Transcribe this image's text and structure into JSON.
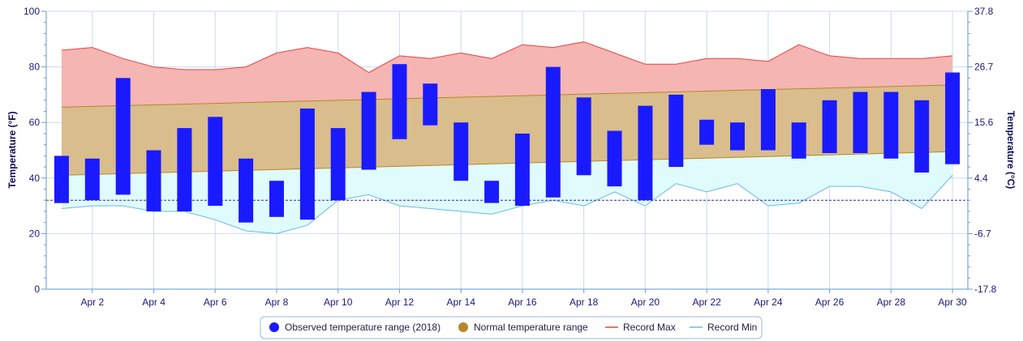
{
  "chart_data": {
    "type": "bar",
    "ylabel_left": "Temperature (°F)",
    "ylabel_right": "Temperature (°C)",
    "ylim": [
      0,
      100
    ],
    "yticks_left": [
      "0",
      "20",
      "40",
      "60",
      "80",
      "100"
    ],
    "yticks_right": [
      "-17.8",
      "-6.7",
      "4.4",
      "15.6",
      "26.7",
      "37.8"
    ],
    "x_days": [
      1,
      2,
      3,
      4,
      5,
      6,
      7,
      8,
      9,
      10,
      11,
      12,
      13,
      14,
      15,
      16,
      17,
      18,
      19,
      20,
      21,
      22,
      23,
      24,
      25,
      26,
      27,
      28,
      29,
      30
    ],
    "x_tick_labels": [
      "Apr 2",
      "Apr 4",
      "Apr 6",
      "Apr 8",
      "Apr 10",
      "Apr 12",
      "Apr 14",
      "Apr 16",
      "Apr 18",
      "Apr 20",
      "Apr 22",
      "Apr 24",
      "Apr 26",
      "Apr 28",
      "Apr 30"
    ],
    "freezing_line_f": 32,
    "grid": true,
    "legend_position": "bottom-center",
    "series": [
      {
        "name": "Observed temperature range (2018)",
        "color": "#1a1aff",
        "low": [
          31,
          32,
          34,
          28,
          28,
          30,
          24,
          26,
          25,
          32,
          43,
          54,
          59,
          39,
          31,
          30,
          33,
          41,
          37,
          32,
          44,
          52,
          50,
          50,
          47,
          49,
          49,
          47,
          42,
          45
        ],
        "high": [
          48,
          47,
          76,
          50,
          58,
          62,
          47,
          39,
          65,
          58,
          71,
          81,
          74,
          60,
          39,
          56,
          80,
          69,
          57,
          66,
          70,
          61,
          60,
          72,
          60,
          68,
          71,
          71,
          68,
          78
        ]
      },
      {
        "name": "Normal temperature range",
        "color": "#b8862b",
        "low_start": 41,
        "low_end": 49.5,
        "high_start": 65.5,
        "high_end": 73.5
      },
      {
        "name": "Record Max",
        "color": "#e64545",
        "values": [
          86,
          87,
          83,
          80,
          79,
          79,
          80,
          85,
          87,
          85,
          78,
          84,
          83,
          85,
          83,
          88,
          87,
          89,
          85,
          81,
          81,
          83,
          83,
          82,
          88,
          84,
          83,
          83,
          83,
          84
        ]
      },
      {
        "name": "Record Min",
        "color": "#6ab8e8",
        "values": [
          29,
          30,
          30,
          28,
          28,
          25,
          21,
          20,
          23,
          32,
          34,
          30,
          29,
          28,
          27,
          30,
          32,
          30,
          35,
          30,
          38,
          35,
          38,
          30,
          31,
          37,
          37,
          35,
          29,
          41
        ]
      }
    ]
  }
}
